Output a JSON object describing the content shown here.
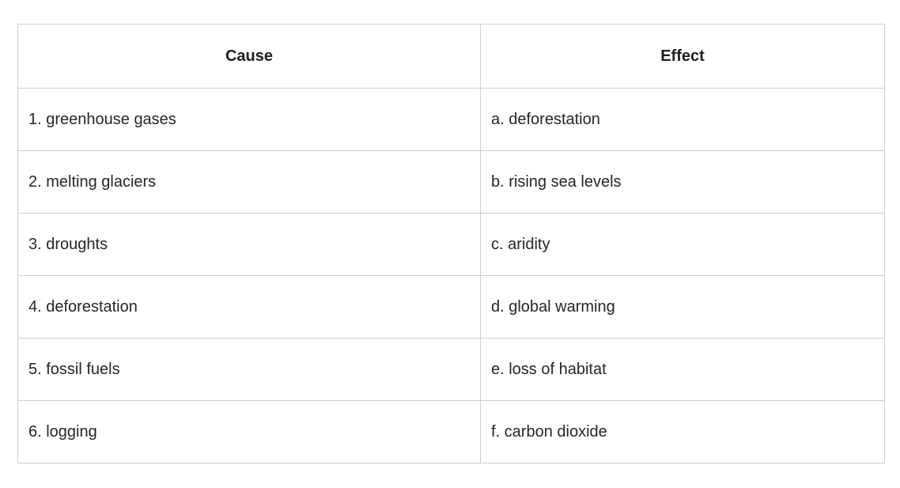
{
  "table": {
    "headers": [
      "Cause",
      "Effect"
    ],
    "rows": [
      {
        "cause": "1. greenhouse gases",
        "effect": "a. deforestation"
      },
      {
        "cause": "2. melting glaciers",
        "effect": "b. rising sea levels"
      },
      {
        "cause": "3. droughts",
        "effect": "c. aridity"
      },
      {
        "cause": "4. deforestation",
        "effect": "d. global warming"
      },
      {
        "cause": "5. fossil fuels",
        "effect": "e. loss of habitat"
      },
      {
        "cause": "6. logging",
        "effect": "f. carbon dioxide"
      }
    ]
  }
}
